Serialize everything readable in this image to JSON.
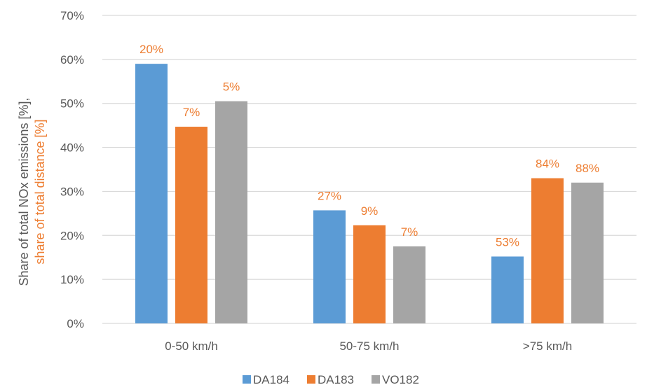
{
  "chart_data": {
    "type": "bar",
    "categories": [
      "0-50 km/h",
      "50-75 km/h",
      ">75 km/h"
    ],
    "series": [
      {
        "name": "DA184",
        "color": "#5B9BD5",
        "values": [
          59,
          25.7,
          15.2
        ],
        "labels": [
          "20%",
          "27%",
          "53%"
        ]
      },
      {
        "name": "DA183",
        "color": "#ED7D31",
        "values": [
          44.7,
          22.3,
          33
        ],
        "labels": [
          "7%",
          "9%",
          "84%"
        ]
      },
      {
        "name": "VO182",
        "color": "#A5A5A5",
        "values": [
          50.5,
          17.5,
          32
        ],
        "labels": [
          "5%",
          "7%",
          "88%"
        ]
      }
    ],
    "ylim": [
      0,
      70
    ],
    "yticks": [
      0,
      10,
      20,
      30,
      40,
      50,
      60,
      70
    ],
    "ytick_labels": [
      "0%",
      "10%",
      "20%",
      "30%",
      "40%",
      "50%",
      "60%",
      "70%"
    ],
    "ylabel_line1": "Share of total NOx emissions [%],",
    "ylabel_line2": "share of total distance [%]",
    "ylabel_line1_color": "#595959",
    "ylabel_line2_color": "#ED7D31",
    "data_label_color": "#ED7D31",
    "grid": true,
    "grid_color": "#D9D9D9",
    "legend_position": "bottom"
  }
}
